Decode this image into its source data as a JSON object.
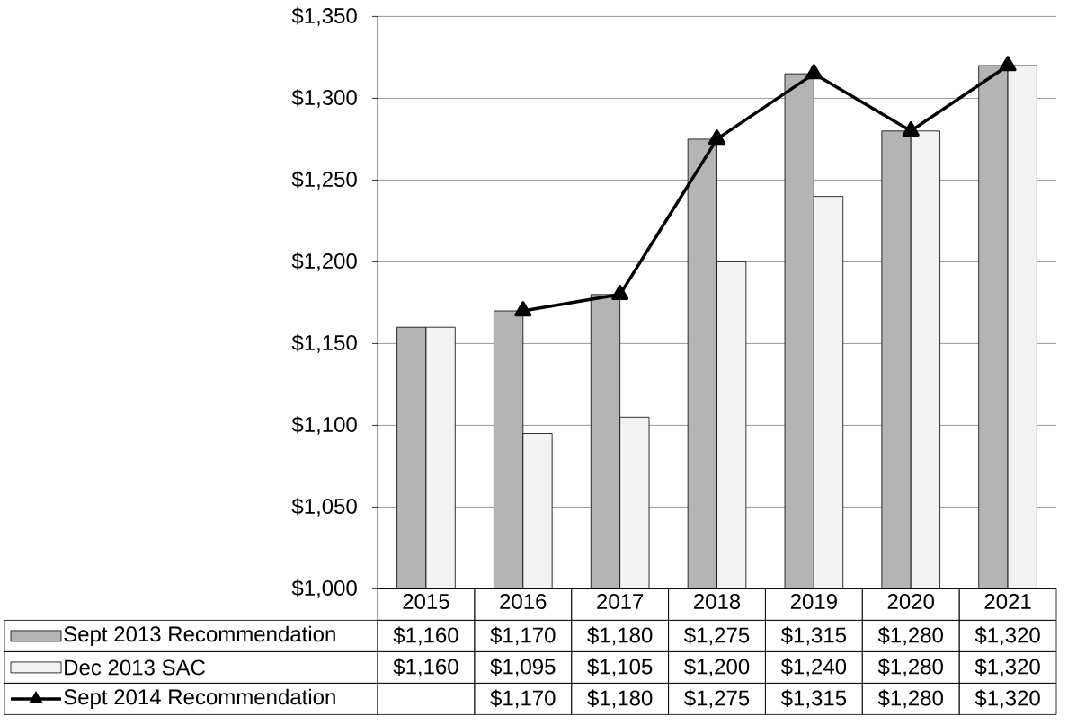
{
  "chart_data": {
    "type": "bar",
    "categories": [
      "2015",
      "2016",
      "2017",
      "2018",
      "2019",
      "2020",
      "2021"
    ],
    "series": [
      {
        "name": "Sept 2013 Recommendation",
        "color": "#b4b4b4",
        "values": [
          1160,
          1170,
          1180,
          1275,
          1315,
          1280,
          1320
        ],
        "value_labels": [
          "$1,160",
          "$1,170",
          "$1,180",
          "$1,275",
          "$1,315",
          "$1,280",
          "$1,320"
        ]
      },
      {
        "name": "Dec 2013 SAC",
        "color": "#f2f2f2",
        "values": [
          1160,
          1095,
          1105,
          1200,
          1240,
          1280,
          1320
        ],
        "value_labels": [
          "$1,160",
          "$1,095",
          "$1,105",
          "$1,200",
          "$1,240",
          "$1,280",
          "$1,320"
        ]
      },
      {
        "name": "Sept 2014 Recommendation",
        "type": "line",
        "color": "#000000",
        "marker": "triangle",
        "values": [
          null,
          1170,
          1180,
          1275,
          1315,
          1280,
          1320
        ],
        "value_labels": [
          null,
          "$1,170",
          "$1,180",
          "$1,275",
          "$1,315",
          "$1,280",
          "$1,320"
        ]
      }
    ],
    "ylim": [
      1000,
      1350
    ],
    "yticks": [
      {
        "value": 1000,
        "label": "$1,000"
      },
      {
        "value": 1050,
        "label": "$1,050"
      },
      {
        "value": 1100,
        "label": "$1,100"
      },
      {
        "value": 1150,
        "label": "$1,150"
      },
      {
        "value": 1200,
        "label": "$1,200"
      },
      {
        "value": 1250,
        "label": "$1,250"
      },
      {
        "value": 1300,
        "label": "$1,300"
      },
      {
        "value": 1350,
        "label": "$1,350"
      }
    ],
    "grid": "y",
    "legend": "bottom"
  }
}
